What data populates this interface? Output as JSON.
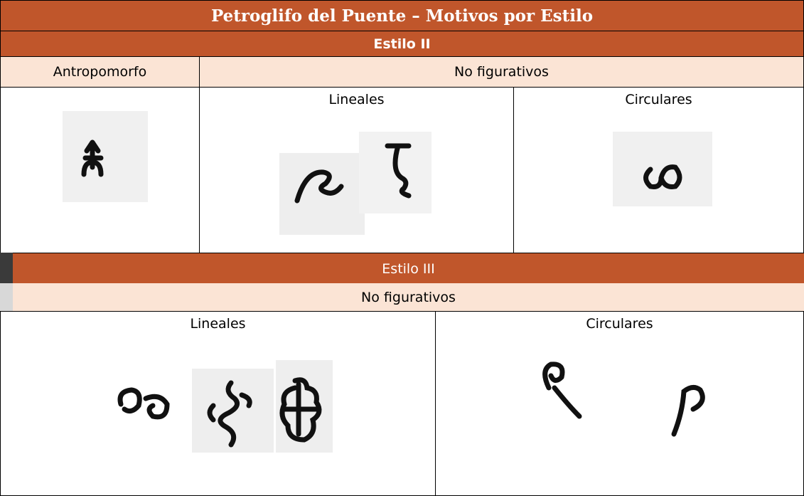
{
  "header": {
    "title": "Petroglifo del Puente – Motivos por Estilo"
  },
  "sections": [
    {
      "title": "Estilo II",
      "groups": [
        {
          "label": "Antropomorfo"
        },
        {
          "label": "No figurativos",
          "columns": [
            "Lineales",
            "Circulares"
          ]
        }
      ]
    },
    {
      "title": "Estilo III",
      "groups": [
        {
          "label": "No figurativos",
          "columns": [
            "Lineales",
            "Circulares"
          ]
        }
      ]
    }
  ]
}
